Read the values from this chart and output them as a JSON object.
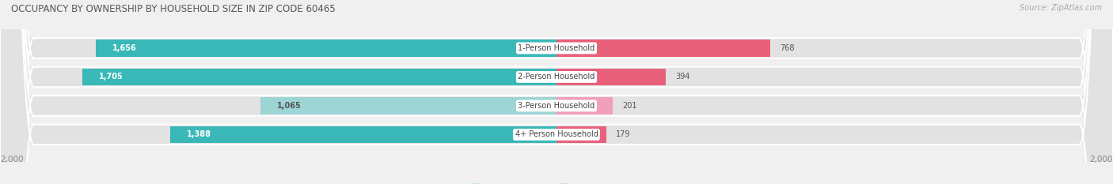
{
  "title": "OCCUPANCY BY OWNERSHIP BY HOUSEHOLD SIZE IN ZIP CODE 60465",
  "source": "Source: ZipAtlas.com",
  "categories": [
    "1-Person Household",
    "2-Person Household",
    "3-Person Household",
    "4+ Person Household"
  ],
  "owner_values": [
    1656,
    1705,
    1065,
    1388
  ],
  "renter_values": [
    768,
    394,
    201,
    179
  ],
  "owner_color_dark": "#3ab8b8",
  "owner_color_light": "#9dd4d4",
  "renter_color_dark": "#e8607a",
  "renter_color_light": "#f0a0b8",
  "max_val": 2000,
  "bg_color": "#f0f0f0",
  "row_bg_color": "#e2e2e2",
  "title_fontsize": 8.5,
  "source_fontsize": 7,
  "value_fontsize": 7,
  "cat_fontsize": 7,
  "tick_fontsize": 7.5,
  "legend_fontsize": 7.5,
  "light_row": 2
}
